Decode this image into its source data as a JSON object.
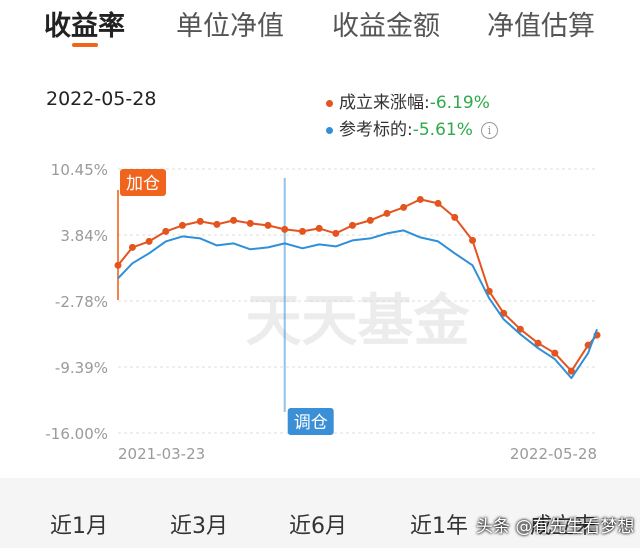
{
  "tabs": [
    {
      "label": "收益率",
      "active": true
    },
    {
      "label": "单位净值",
      "active": false
    },
    {
      "label": "收益金额",
      "active": false
    },
    {
      "label": "净值估算",
      "active": false
    }
  ],
  "accent_color": "#f0641e",
  "date": "2022-05-28",
  "legend": {
    "fund": {
      "label": "成立来涨幅:",
      "value": "-6.19%",
      "color": "#e3541e"
    },
    "benchmark": {
      "label": "参考标的:",
      "value": "-5.61%",
      "color": "#2f8fd8"
    },
    "value_color": "#2eaa4a",
    "info_icon": "info-icon"
  },
  "chart_data": {
    "type": "line",
    "y_tick_labels": [
      "10.45%",
      "3.84%",
      "-2.78%",
      "-9.39%",
      "-16.00%"
    ],
    "ylim": [
      -16.0,
      10.45
    ],
    "x_tick_labels": [
      "2021-03-23",
      "2022-05-28"
    ],
    "x": [
      "2021-03-23",
      "2021-04-05",
      "2021-04-20",
      "2021-05-05",
      "2021-05-20",
      "2021-06-05",
      "2021-06-20",
      "2021-07-05",
      "2021-07-20",
      "2021-08-05",
      "2021-08-20",
      "2021-09-05",
      "2021-09-20",
      "2021-10-05",
      "2021-10-20",
      "2021-11-05",
      "2021-11-20",
      "2021-12-05",
      "2021-12-20",
      "2022-01-05",
      "2022-01-20",
      "2022-02-05",
      "2022-02-20",
      "2022-03-05",
      "2022-03-20",
      "2022-04-05",
      "2022-04-20",
      "2022-05-05",
      "2022-05-20",
      "2022-05-28"
    ],
    "series": [
      {
        "color": "#e3541e",
        "values": [
          0.8,
          2.6,
          3.2,
          4.2,
          4.8,
          5.2,
          4.9,
          5.3,
          5.0,
          4.8,
          4.4,
          4.2,
          4.5,
          4.0,
          4.8,
          5.3,
          6.0,
          6.6,
          7.4,
          7.0,
          5.6,
          3.3,
          -1.8,
          -4.0,
          -5.6,
          -7.0,
          -8.0,
          -9.8,
          -7.2,
          -6.19
        ]
      },
      {
        "color": "#2f8fd8",
        "values": [
          -0.5,
          1.0,
          2.0,
          3.2,
          3.7,
          3.5,
          2.8,
          3.0,
          2.4,
          2.6,
          3.0,
          2.5,
          2.9,
          2.7,
          3.3,
          3.5,
          4.0,
          4.3,
          3.6,
          3.2,
          2.0,
          0.8,
          -2.5,
          -4.6,
          -6.1,
          -7.5,
          -8.6,
          -10.5,
          -8.0,
          -5.61
        ]
      }
    ],
    "markers": [
      {
        "label": "加仓",
        "x": "2021-03-23",
        "color": "#f0641e",
        "position": "top"
      },
      {
        "label": "调仓",
        "x": "2021-08-20",
        "color": "#3b8fd6",
        "position": "bottom"
      }
    ],
    "watermark": "天天基金",
    "grid": "horizontal dashed"
  },
  "ranges": [
    "近1月",
    "近3月",
    "近6月",
    "近1年",
    "成立来"
  ],
  "credit": "头条 @有先生看梦想"
}
